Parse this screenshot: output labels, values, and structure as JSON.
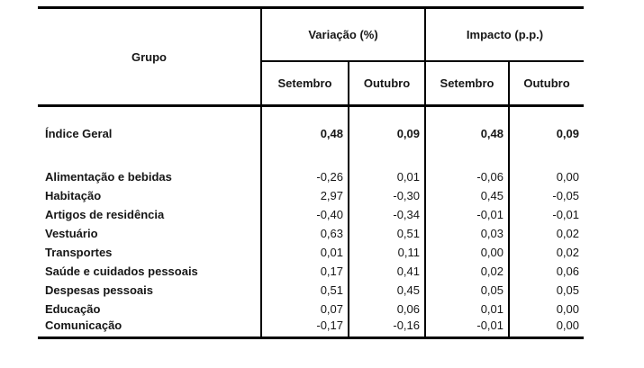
{
  "table": {
    "header": {
      "group_label": "Grupo",
      "variation_label": "Variação (%)",
      "impact_label": "Impacto (p.p.)",
      "months": [
        "Setembro",
        "Outubro",
        "Setembro",
        "Outubro"
      ]
    },
    "rows": [
      {
        "label": "Índice Geral",
        "emphasis": true,
        "values": [
          "0,48",
          "0,09",
          "0,48",
          "0,09"
        ]
      },
      {
        "label": "Alimentação e bebidas",
        "emphasis": false,
        "values": [
          "-0,26",
          "0,01",
          "-0,06",
          "0,00"
        ]
      },
      {
        "label": "Habitação",
        "emphasis": false,
        "values": [
          "2,97",
          "-0,30",
          "0,45",
          "-0,05"
        ]
      },
      {
        "label": "Artigos de residência",
        "emphasis": false,
        "values": [
          "-0,40",
          "-0,34",
          "-0,01",
          "-0,01"
        ]
      },
      {
        "label": "Vestuário",
        "emphasis": false,
        "values": [
          "0,63",
          "0,51",
          "0,03",
          "0,02"
        ]
      },
      {
        "label": "Transportes",
        "emphasis": false,
        "values": [
          "0,01",
          "0,11",
          "0,00",
          "0,02"
        ]
      },
      {
        "label": "Saúde e cuidados pessoais",
        "emphasis": false,
        "values": [
          "0,17",
          "0,41",
          "0,02",
          "0,06"
        ]
      },
      {
        "label": "Despesas pessoais",
        "emphasis": false,
        "values": [
          "0,51",
          "0,45",
          "0,05",
          "0,05"
        ]
      },
      {
        "label": "Educação",
        "emphasis": false,
        "values": [
          "0,07",
          "0,06",
          "0,01",
          "0,00"
        ]
      },
      {
        "label": "Comunicação",
        "emphasis": false,
        "values": [
          "-0,17",
          "-0,16",
          "-0,01",
          "0,00"
        ]
      }
    ],
    "colors": {
      "border": "#000000",
      "text": "#161616",
      "background": "#ffffff"
    }
  }
}
